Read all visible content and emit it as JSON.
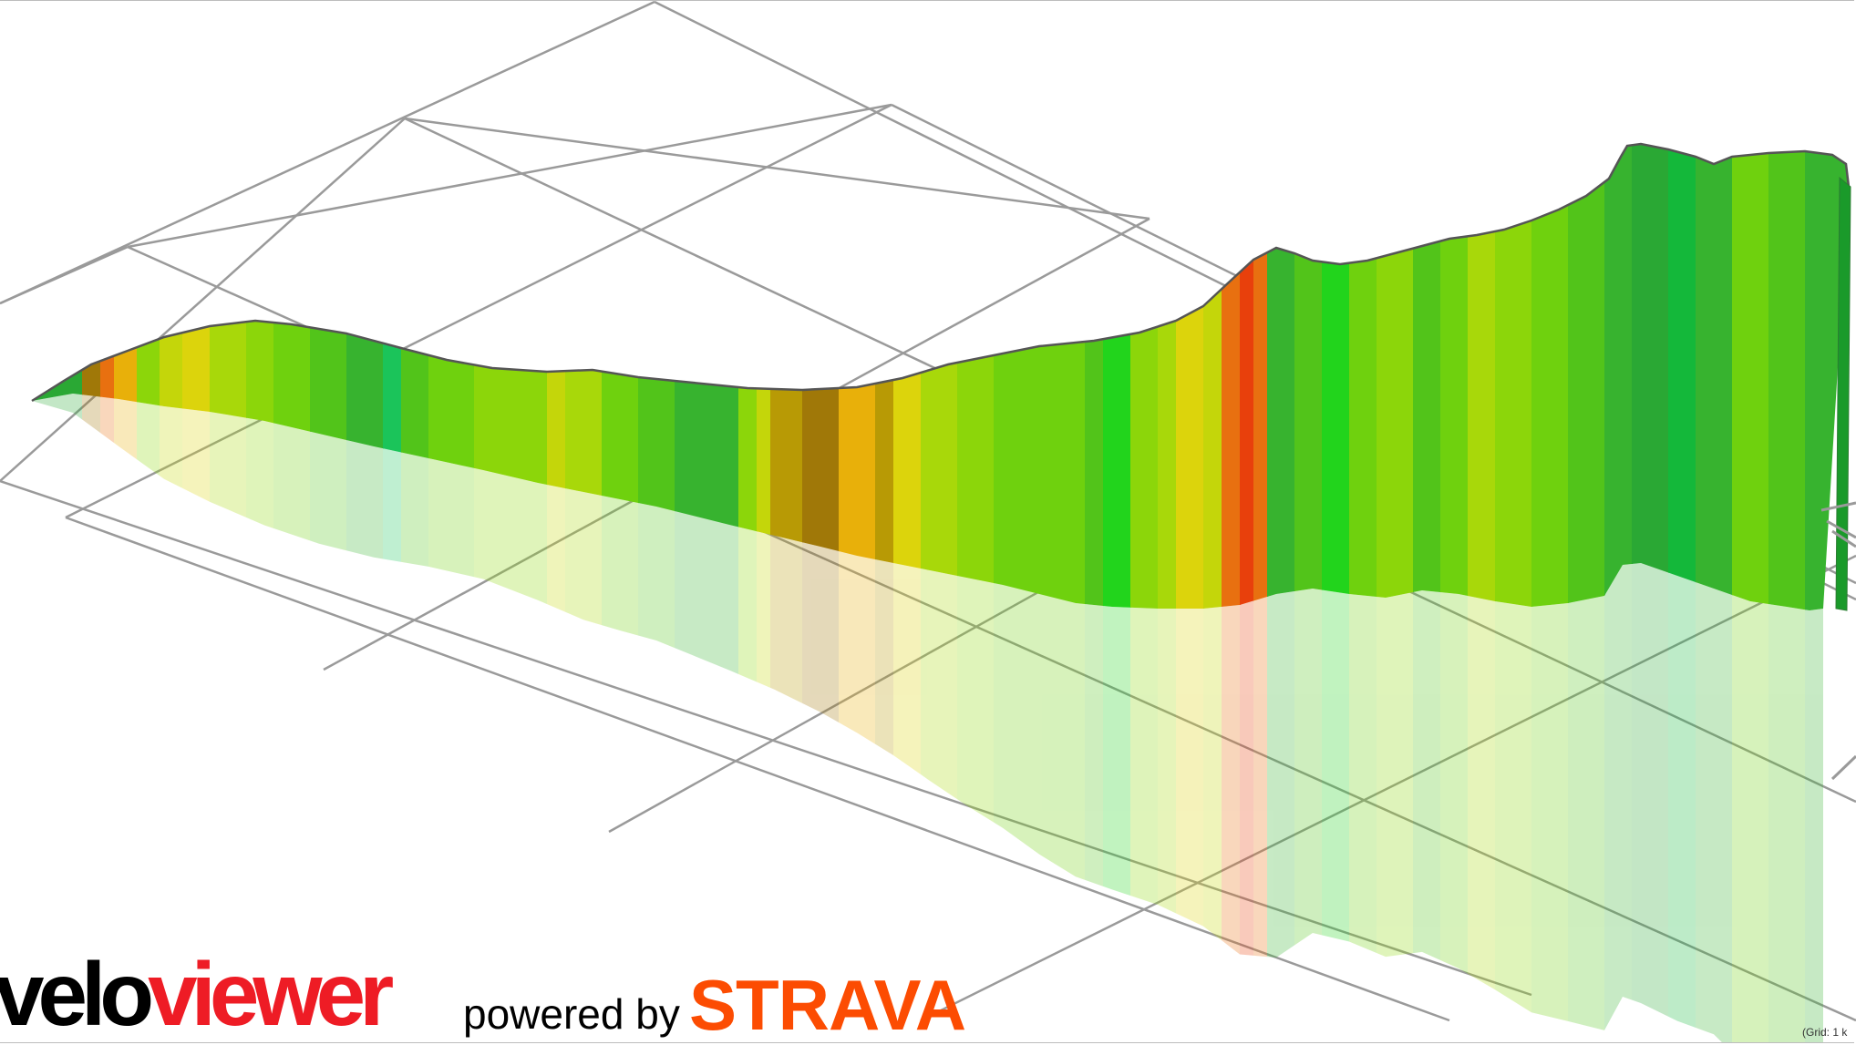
{
  "branding": {
    "logo_velo": "velo",
    "logo_viewer": "viewer",
    "powered_by": "powered by",
    "strava": "STRAVA"
  },
  "grid_note": "(Grid: 1 k",
  "colors": {
    "grid_line": "#9a9a9a",
    "logo_red": "#ee1c25",
    "strava_orange": "#fc4c02",
    "gradient_low": "#1fb33a",
    "gradient_mid": "#e8d800",
    "gradient_high": "#e8300a"
  },
  "profile": {
    "description_free": true,
    "gradient_palette": [
      "#2aa834",
      "#37b32f",
      "#52c41a",
      "#6fd10e",
      "#8cd60a",
      "#a8d80a",
      "#c4d60a",
      "#dcd40c",
      "#b89a05",
      "#a07808",
      "#e8b00a",
      "#e87010",
      "#e8400c",
      "#1bc45a",
      "#14b83a",
      "#22d41c"
    ]
  }
}
